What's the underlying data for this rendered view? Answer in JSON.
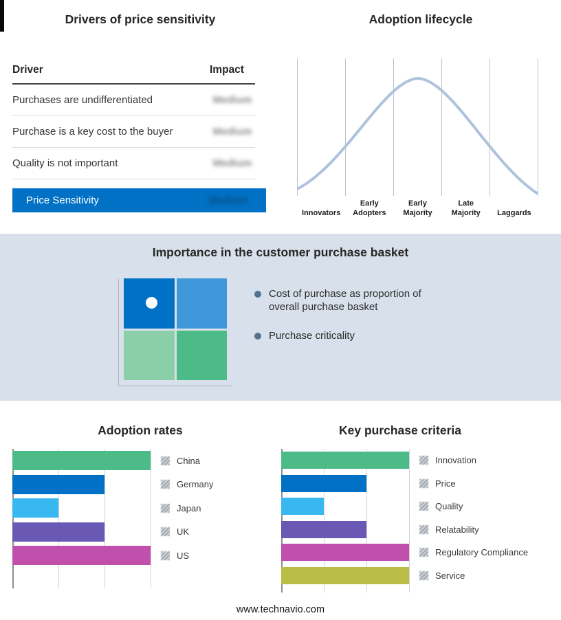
{
  "footer": {
    "url": "www.technavio.com"
  },
  "colors": {
    "green": "#4CBB88",
    "blue": "#0071C5",
    "light_blue": "#38B8F0",
    "purple": "#6A58B5",
    "magenta": "#C050AC",
    "olive": "#B9BC45",
    "band_bg": "#D8E1EB",
    "curve": "#AEC3DB",
    "summary_bar": "#0071C5",
    "quad_top_left": "#0071C5",
    "quad_top_right": "#3F97D9",
    "quad_bottom_left": "#8BCFA8",
    "quad_bottom_right": "#4CBB88"
  },
  "basket": {
    "title": "Importance in the customer purchase basket",
    "bullets": [
      "Cost of purchase as proportion of overall purchase basket",
      "Purchase criticality"
    ]
  },
  "chart_data": [
    {
      "type": "table",
      "title": "Drivers of price sensitivity",
      "columns": [
        "Driver",
        "Impact"
      ],
      "rows": [
        [
          "Purchases are undifferentiated",
          "Medium"
        ],
        [
          "Purchase is a key cost to the buyer",
          "Medium"
        ],
        [
          "Quality is not important",
          "Medium"
        ]
      ],
      "summary_row": [
        "Price Sensitivity",
        "Medium"
      ]
    },
    {
      "type": "line",
      "title": "Adoption lifecycle",
      "categories": [
        "Innovators",
        "Early Adopters",
        "Early Majority",
        "Late Majority",
        "Laggards"
      ],
      "description": "Bell curve peaking over Early Majority",
      "grid": "vertical stage dividers"
    },
    {
      "type": "bar",
      "title": "Adoption rates",
      "orientation": "horizontal",
      "categories": [
        "China",
        "Germany",
        "Japan",
        "UK",
        "US"
      ],
      "values": [
        3,
        2,
        1,
        2,
        3
      ],
      "xlim": [
        0,
        3
      ],
      "grid": "vertical gridlines at 0, 1, 2, 3",
      "colors": [
        "#4CBB88",
        "#0071C5",
        "#38B8F0",
        "#6A58B5",
        "#C050AC"
      ]
    },
    {
      "type": "bar",
      "title": "Key purchase criteria",
      "orientation": "horizontal",
      "categories": [
        "Innovation",
        "Price",
        "Quality",
        "Relatability",
        "Regulatory Compliance",
        "Service"
      ],
      "values": [
        3,
        2,
        1,
        2,
        3,
        3
      ],
      "xlim": [
        0,
        3
      ],
      "grid": "vertical gridlines at 0, 1, 2, 3",
      "colors": [
        "#4CBB88",
        "#0071C5",
        "#38B8F0",
        "#6A58B5",
        "#C050AC",
        "#B9BC45"
      ]
    }
  ]
}
